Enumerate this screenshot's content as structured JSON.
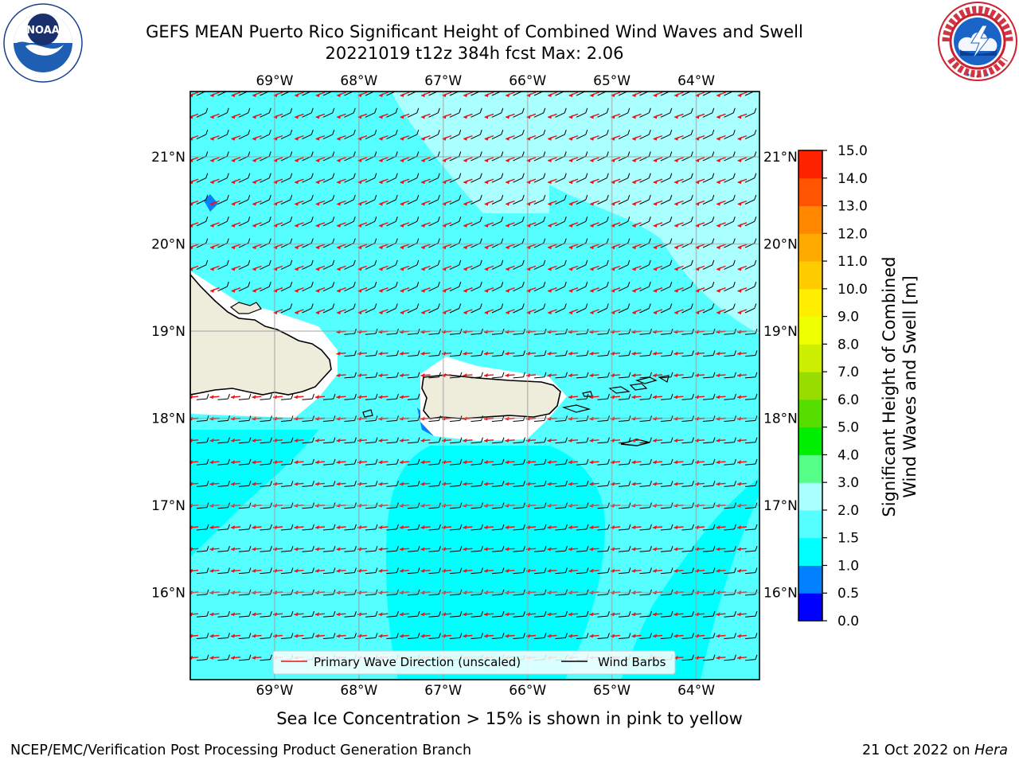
{
  "header": {
    "title_line1": "GEFS MEAN Puerto Rico Significant Height of Combined Wind Waves and Swell",
    "title_line2": "20221019 t12z 384h fcst   Max: 2.06"
  },
  "logos": {
    "left": "noaa-logo",
    "left_text": "NOAA",
    "right": "nws-logo"
  },
  "map": {
    "lon_labels": [
      "69°W",
      "68°W",
      "67°W",
      "66°W",
      "65°W",
      "64°W"
    ],
    "lon_values": [
      -69,
      -68,
      -67,
      -66,
      -65,
      -64
    ],
    "lat_labels": [
      "21°N",
      "20°N",
      "19°N",
      "18°N",
      "17°N",
      "16°N"
    ],
    "lat_values": [
      21,
      20,
      19,
      18,
      17,
      16
    ],
    "extent_lon": [
      -70.0,
      -63.25
    ],
    "extent_lat": [
      15.0,
      21.75
    ],
    "legend": {
      "wave_direction": "Primary Wave Direction (unscaled)",
      "wind_barbs": "Wind Barbs"
    },
    "colors": {
      "land": "#eeecdb",
      "sea_1_0_1_5": "#00ffff",
      "sea_1_5_2_0": "#55ffff",
      "sea_2_0_3_0": "#aaffff",
      "sea_0_5_1_0": "#0080ff",
      "wave_arrows": "#ee1111",
      "wind_barbs": "#000000"
    }
  },
  "colorbar": {
    "label_line1": "Significant Height of Combined",
    "label_line2": "Wind Waves and Swell [m]",
    "tick_labels": [
      "0.0",
      "0.5",
      "1.0",
      "1.5",
      "2.0",
      "3.0",
      "4.0",
      "5.0",
      "6.0",
      "7.0",
      "8.0",
      "9.0",
      "10.0",
      "11.0",
      "12.0",
      "13.0",
      "14.0",
      "15.0"
    ],
    "colors": [
      "#0000ff",
      "#0080ff",
      "#00ffff",
      "#55ffff",
      "#aaffff",
      "#55ff88",
      "#00ee00",
      "#55dd00",
      "#99dd00",
      "#ccee00",
      "#eeff00",
      "#ffee00",
      "#ffcc00",
      "#ffaa00",
      "#ff8800",
      "#ff5500",
      "#ff2200"
    ]
  },
  "notes": {
    "ice": "Sea Ice Concentration > 15% is shown in pink to yellow"
  },
  "footer": {
    "left": "NCEP/EMC/Verification Post Processing Product Generation Branch",
    "right_prefix": "21 Oct 2022 on ",
    "right_machine": "Hera"
  }
}
